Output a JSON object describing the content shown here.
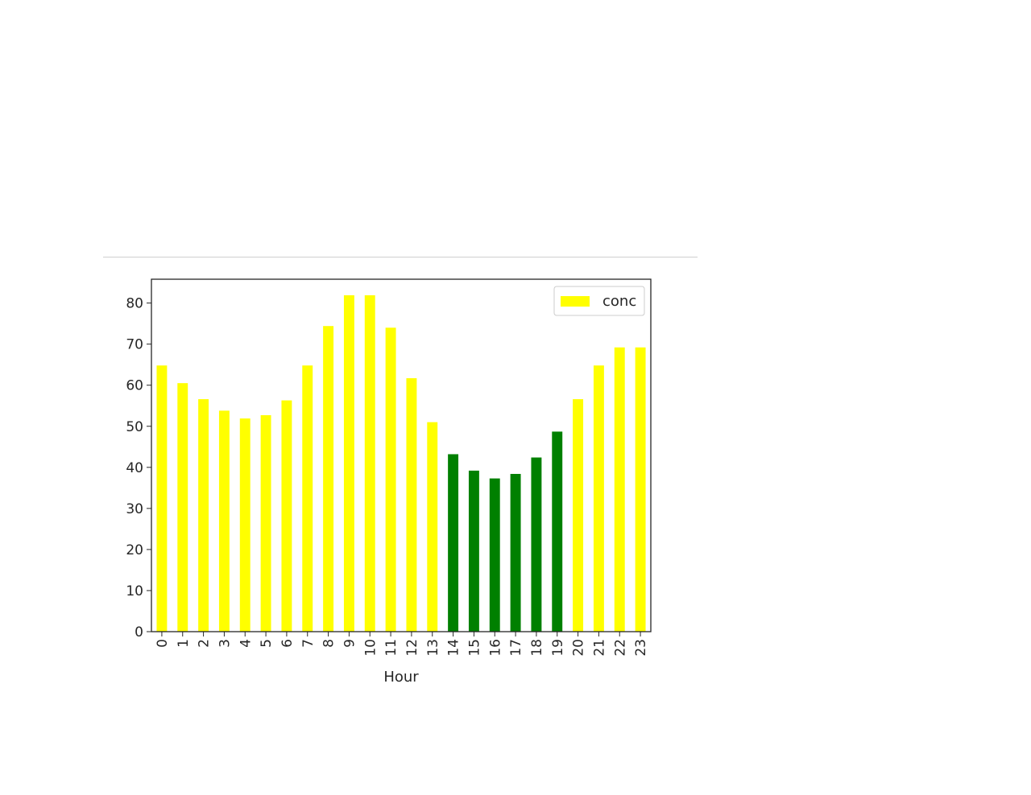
{
  "chart_data": {
    "type": "bar",
    "categories": [
      "0",
      "1",
      "2",
      "3",
      "4",
      "5",
      "6",
      "7",
      "8",
      "9",
      "10",
      "11",
      "12",
      "13",
      "14",
      "15",
      "16",
      "17",
      "18",
      "19",
      "20",
      "21",
      "22",
      "23"
    ],
    "series": [
      {
        "name": "conc",
        "values": [
          64.8,
          60.5,
          56.6,
          53.8,
          51.9,
          52.7,
          56.3,
          64.8,
          74.4,
          81.9,
          81.9,
          74.0,
          61.7,
          51.0,
          43.2,
          39.2,
          37.3,
          38.4,
          42.4,
          48.7,
          56.6,
          64.8,
          69.2,
          69.2
        ],
        "colors": [
          "#ffff00",
          "#ffff00",
          "#ffff00",
          "#ffff00",
          "#ffff00",
          "#ffff00",
          "#ffff00",
          "#ffff00",
          "#ffff00",
          "#ffff00",
          "#ffff00",
          "#ffff00",
          "#ffff00",
          "#ffff00",
          "#008000",
          "#008000",
          "#008000",
          "#008000",
          "#008000",
          "#008000",
          "#ffff00",
          "#ffff00",
          "#ffff00",
          "#ffff00"
        ]
      }
    ],
    "legend": {
      "position": "top-right",
      "entries": [
        {
          "label": "conc",
          "color": "#ffff00"
        }
      ]
    },
    "title": "",
    "xlabel": "Hour",
    "ylabel": "",
    "yticks": [
      0,
      10,
      20,
      30,
      40,
      50,
      60,
      70,
      80
    ],
    "ylim": [
      0,
      85.8
    ],
    "grid": false
  }
}
